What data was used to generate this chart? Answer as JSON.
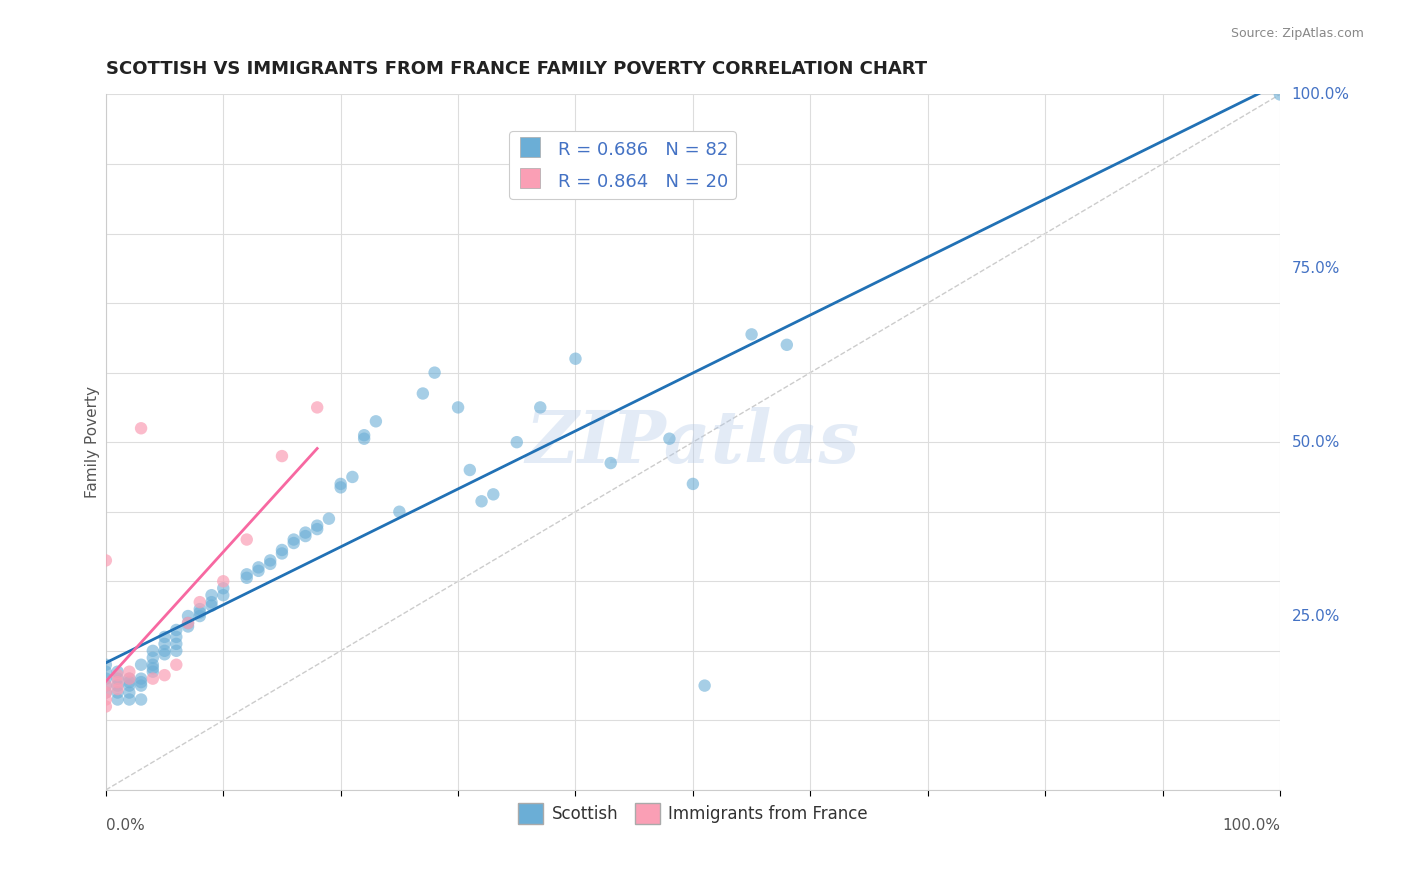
{
  "title": "SCOTTISH VS IMMIGRANTS FROM FRANCE FAMILY POVERTY CORRELATION CHART",
  "source_text": "Source: ZipAtlas.com",
  "xlabel": "",
  "ylabel": "Family Poverty",
  "watermark": "ZIPatlas",
  "legend_r1": "R = 0.686",
  "legend_n1": "N = 82",
  "legend_r2": "R = 0.864",
  "legend_n2": "N = 20",
  "blue_color": "#6baed6",
  "pink_color": "#fa9fb5",
  "blue_line_color": "#2171b5",
  "pink_line_color": "#f768a1",
  "background_color": "#ffffff",
  "grid_color": "#dddddd",
  "title_color": "#222222",
  "label_color": "#555555",
  "blue_scatter": [
    [
      0.0,
      0.18
    ],
    [
      0.0,
      0.17
    ],
    [
      0.0,
      0.16
    ],
    [
      0.0,
      0.15
    ],
    [
      0.0,
      0.14
    ],
    [
      0.01,
      0.17
    ],
    [
      0.01,
      0.16
    ],
    [
      0.01,
      0.15
    ],
    [
      0.01,
      0.14
    ],
    [
      0.01,
      0.13
    ],
    [
      0.02,
      0.16
    ],
    [
      0.02,
      0.155
    ],
    [
      0.02,
      0.15
    ],
    [
      0.02,
      0.14
    ],
    [
      0.02,
      0.13
    ],
    [
      0.03,
      0.18
    ],
    [
      0.03,
      0.16
    ],
    [
      0.03,
      0.155
    ],
    [
      0.03,
      0.15
    ],
    [
      0.03,
      0.13
    ],
    [
      0.04,
      0.2
    ],
    [
      0.04,
      0.19
    ],
    [
      0.04,
      0.18
    ],
    [
      0.04,
      0.175
    ],
    [
      0.04,
      0.17
    ],
    [
      0.05,
      0.22
    ],
    [
      0.05,
      0.21
    ],
    [
      0.05,
      0.2
    ],
    [
      0.05,
      0.195
    ],
    [
      0.06,
      0.23
    ],
    [
      0.06,
      0.22
    ],
    [
      0.06,
      0.21
    ],
    [
      0.06,
      0.2
    ],
    [
      0.07,
      0.25
    ],
    [
      0.07,
      0.24
    ],
    [
      0.07,
      0.235
    ],
    [
      0.08,
      0.26
    ],
    [
      0.08,
      0.255
    ],
    [
      0.08,
      0.25
    ],
    [
      0.09,
      0.28
    ],
    [
      0.09,
      0.27
    ],
    [
      0.09,
      0.265
    ],
    [
      0.1,
      0.29
    ],
    [
      0.1,
      0.28
    ],
    [
      0.12,
      0.31
    ],
    [
      0.12,
      0.305
    ],
    [
      0.13,
      0.32
    ],
    [
      0.13,
      0.315
    ],
    [
      0.14,
      0.33
    ],
    [
      0.14,
      0.325
    ],
    [
      0.15,
      0.345
    ],
    [
      0.15,
      0.34
    ],
    [
      0.16,
      0.36
    ],
    [
      0.16,
      0.355
    ],
    [
      0.17,
      0.37
    ],
    [
      0.17,
      0.365
    ],
    [
      0.18,
      0.38
    ],
    [
      0.18,
      0.375
    ],
    [
      0.19,
      0.39
    ],
    [
      0.2,
      0.44
    ],
    [
      0.2,
      0.435
    ],
    [
      0.21,
      0.45
    ],
    [
      0.22,
      0.51
    ],
    [
      0.22,
      0.505
    ],
    [
      0.23,
      0.53
    ],
    [
      0.25,
      0.4
    ],
    [
      0.27,
      0.57
    ],
    [
      0.28,
      0.6
    ],
    [
      0.3,
      0.55
    ],
    [
      0.31,
      0.46
    ],
    [
      0.32,
      0.415
    ],
    [
      0.33,
      0.425
    ],
    [
      0.35,
      0.5
    ],
    [
      0.37,
      0.55
    ],
    [
      0.4,
      0.62
    ],
    [
      0.43,
      0.47
    ],
    [
      0.48,
      0.505
    ],
    [
      0.5,
      0.44
    ],
    [
      0.51,
      0.15
    ],
    [
      0.55,
      0.655
    ],
    [
      0.58,
      0.64
    ],
    [
      1.0,
      1.0
    ]
  ],
  "pink_scatter": [
    [
      0.0,
      0.33
    ],
    [
      0.0,
      0.15
    ],
    [
      0.0,
      0.14
    ],
    [
      0.0,
      0.13
    ],
    [
      0.0,
      0.12
    ],
    [
      0.01,
      0.165
    ],
    [
      0.01,
      0.155
    ],
    [
      0.01,
      0.145
    ],
    [
      0.02,
      0.17
    ],
    [
      0.02,
      0.16
    ],
    [
      0.03,
      0.52
    ],
    [
      0.04,
      0.16
    ],
    [
      0.05,
      0.165
    ],
    [
      0.06,
      0.18
    ],
    [
      0.07,
      0.24
    ],
    [
      0.08,
      0.27
    ],
    [
      0.1,
      0.3
    ],
    [
      0.12,
      0.36
    ],
    [
      0.15,
      0.48
    ],
    [
      0.18,
      0.55
    ]
  ],
  "xlim": [
    0.0,
    1.0
  ],
  "ylim": [
    0.0,
    1.0
  ],
  "ytick_labels": [
    "25.0%",
    "50.0%",
    "75.0%",
    "100.0%"
  ],
  "ytick_positions": [
    0.25,
    0.5,
    0.75,
    1.0
  ],
  "title_fontsize": 13,
  "axis_label_fontsize": 11,
  "tick_fontsize": 11
}
